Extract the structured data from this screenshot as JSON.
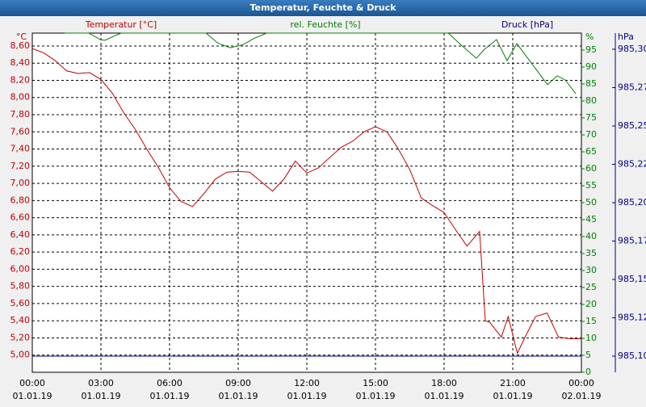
{
  "chart_data": {
    "type": "line",
    "title": "Temperatur, Feuchte & Druck",
    "y_unit": "°C",
    "y2_unit": "%",
    "y3_unit": "hPa",
    "grid": true,
    "xlim": [
      0,
      24
    ],
    "xticks": [
      {
        "value": 0,
        "label": "00:00"
      },
      {
        "value": 3,
        "label": "03:00"
      },
      {
        "value": 6,
        "label": "06:00"
      },
      {
        "value": 9,
        "label": "09:00"
      },
      {
        "value": 12,
        "label": "12:00"
      },
      {
        "value": 15,
        "label": "15:00"
      },
      {
        "value": 18,
        "label": "18:00"
      },
      {
        "value": 21,
        "label": "21:00"
      },
      {
        "value": 24,
        "label": "00:00"
      }
    ],
    "xtick_dates": [
      "01.01.19",
      "01.01.19",
      "01.01.19",
      "01.01.19",
      "01.01.19",
      "01.01.19",
      "01.01.19",
      "01.01.19",
      "02.01.19"
    ],
    "ylim": [
      4.8,
      8.75
    ],
    "yticks": [
      {
        "value": 5.0,
        "label": "5,00"
      },
      {
        "value": 5.2,
        "label": "5,20"
      },
      {
        "value": 5.4,
        "label": "5,40"
      },
      {
        "value": 5.6,
        "label": "5,60"
      },
      {
        "value": 5.8,
        "label": "5,80"
      },
      {
        "value": 6.0,
        "label": "6,00"
      },
      {
        "value": 6.2,
        "label": "6,20"
      },
      {
        "value": 6.4,
        "label": "6,40"
      },
      {
        "value": 6.6,
        "label": "6,60"
      },
      {
        "value": 6.8,
        "label": "6,80"
      },
      {
        "value": 7.0,
        "label": "7,00"
      },
      {
        "value": 7.2,
        "label": "7,20"
      },
      {
        "value": 7.4,
        "label": "7,40"
      },
      {
        "value": 7.6,
        "label": "7,60"
      },
      {
        "value": 7.8,
        "label": "7,80"
      },
      {
        "value": 8.0,
        "label": "8,00"
      },
      {
        "value": 8.2,
        "label": "8,20"
      },
      {
        "value": 8.4,
        "label": "8,40"
      },
      {
        "value": 8.6,
        "label": "8,60"
      }
    ],
    "y2lim": [
      0,
      100
    ],
    "y2ticks": [
      0,
      5,
      10,
      15,
      20,
      25,
      30,
      35,
      40,
      45,
      50,
      55,
      60,
      65,
      70,
      75,
      80,
      85,
      90,
      95
    ],
    "y3lim": [
      985.0895,
      985.3105
    ],
    "y3ticks": [
      {
        "value": 985.1,
        "label": "985,10"
      },
      {
        "value": 985.125,
        "label": "985,12"
      },
      {
        "value": 985.15,
        "label": "985,15"
      },
      {
        "value": 985.175,
        "label": "985,17"
      },
      {
        "value": 985.2,
        "label": "985,20"
      },
      {
        "value": 985.225,
        "label": "985,22"
      },
      {
        "value": 985.25,
        "label": "985,25"
      },
      {
        "value": 985.275,
        "label": "985,27"
      },
      {
        "value": 985.3,
        "label": "985,30"
      }
    ],
    "series": [
      {
        "name": "Temperatur [°C]",
        "color": "#c00000",
        "axis": "y",
        "x": [
          0,
          0.5,
          1,
          1.5,
          2,
          2.5,
          3,
          3.5,
          4,
          4.5,
          5,
          5.5,
          6,
          6.5,
          7,
          7.5,
          8,
          8.5,
          9,
          9.5,
          10,
          10.5,
          11,
          11.5,
          12,
          12.5,
          13,
          13.5,
          14,
          14.5,
          15,
          15.5,
          16,
          16.5,
          17,
          17.5,
          18,
          18.5,
          19,
          19.55,
          19.8,
          20,
          20.5,
          20.8,
          21.2,
          21.5,
          22,
          22.5,
          23,
          23.5,
          24
        ],
        "values": [
          8.57,
          8.52,
          8.43,
          8.31,
          8.28,
          8.29,
          8.21,
          8.05,
          7.82,
          7.63,
          7.4,
          7.19,
          6.95,
          6.79,
          6.73,
          6.88,
          7.05,
          7.13,
          7.14,
          7.13,
          7.02,
          6.91,
          7.05,
          7.26,
          7.12,
          7.18,
          7.3,
          7.42,
          7.49,
          7.6,
          7.66,
          7.6,
          7.4,
          7.16,
          6.83,
          6.74,
          6.66,
          6.46,
          6.27,
          6.44,
          5.4,
          5.38,
          5.21,
          5.45,
          5.02,
          5.19,
          5.45,
          5.49,
          5.21,
          5.19,
          5.19
        ]
      },
      {
        "name": "rel. Feuchte [%]",
        "color": "#008000",
        "axis": "y2",
        "x": [
          1.41,
          2.47,
          3,
          3.18,
          3.53,
          3.88,
          7.59,
          8.12,
          8.65,
          9.18,
          9.71,
          10.24,
          18.18,
          18.71,
          19.41,
          19.76,
          20.29,
          20.75,
          21.18,
          21.71,
          22.52,
          22.94,
          23.29,
          23.76
        ],
        "values": [
          100,
          100,
          98,
          97.9,
          99,
          100,
          100,
          97,
          95.7,
          96.5,
          98.5,
          100,
          100,
          96.7,
          92.6,
          95.2,
          98.1,
          91.9,
          96.9,
          92.1,
          84.8,
          87.4,
          86.2,
          82.1
        ]
      },
      {
        "name": "Druck [hPa]",
        "color": "#000080",
        "axis": "y3",
        "x": [
          0,
          24
        ],
        "values": [
          985.1,
          985.1
        ]
      }
    ]
  }
}
